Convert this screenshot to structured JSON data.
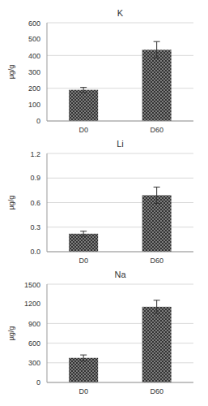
{
  "chart_data": [
    {
      "type": "bar",
      "title": "K",
      "y_label": "µg/g",
      "categories": [
        "D0",
        "D60"
      ],
      "values": [
        190,
        435
      ],
      "errors": [
        15,
        50
      ],
      "color": "#333333",
      "ylim": [
        0,
        600
      ],
      "yticks": [
        0,
        100,
        200,
        300,
        400,
        500,
        600
      ],
      "grid": true
    },
    {
      "type": "bar",
      "title": "Li",
      "y_label": "µg/g",
      "categories": [
        "D0",
        "D60"
      ],
      "values": [
        0.22,
        0.69
      ],
      "errors": [
        0.03,
        0.1
      ],
      "color": "#333333",
      "ylim": [
        0,
        1.2
      ],
      "yticks": [
        {
          "value": 0,
          "label": "0.0"
        },
        0.3,
        0.6,
        0.9,
        1.2
      ],
      "grid": true
    },
    {
      "type": "bar",
      "title": "Na",
      "y_label": "µg/g",
      "categories": [
        "D0",
        "D60"
      ],
      "values": [
        375,
        1155
      ],
      "errors": [
        45,
        100
      ],
      "color": "#333333",
      "ylim": [
        0,
        1500
      ],
      "yticks": [
        0,
        300,
        600,
        900,
        1200,
        1500
      ],
      "grid": true
    }
  ]
}
